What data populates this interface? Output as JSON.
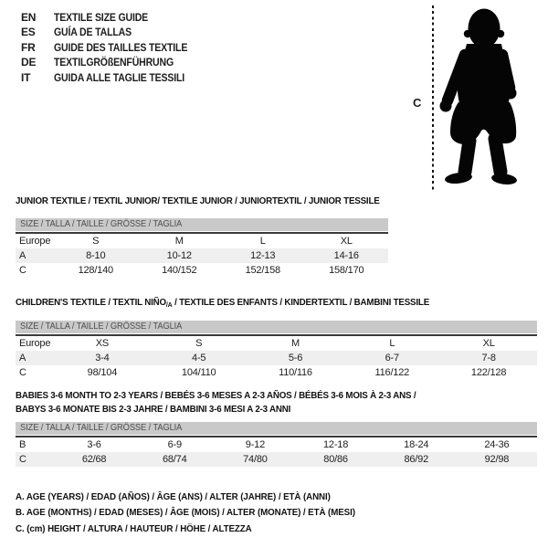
{
  "colors": {
    "header_bar": "#c9c9c9",
    "row_shade": "#efefef",
    "separator": "#3a3a3a",
    "text": "#1d1d1d",
    "bar_text": "#4f4f4f"
  },
  "languages": [
    {
      "code": "EN",
      "title": "TEXTILE SIZE GUIDE"
    },
    {
      "code": "ES",
      "title": "GUÍA DE TALLAS"
    },
    {
      "code": "FR",
      "title": "GUIDE DES TAILLES TEXTILE"
    },
    {
      "code": "DE",
      "title": "TEXTILGRÖßENFÜHRUNG"
    },
    {
      "code": "IT",
      "title": "GUIDA ALLE TAGLIE TESSILI"
    }
  ],
  "figure": {
    "label": "C"
  },
  "tables": [
    {
      "title": "JUNIOR TEXTILE / TEXTIL JUNIOR/ TEXTILE JUNIOR / JUNIORTEXTIL / JUNIOR TESSILE",
      "size_header": "SIZE / TALLA / TAILLE / GRÖSSE / TAGLIA",
      "rows": [
        {
          "label": "Europe",
          "shaded": false,
          "cells": [
            "S",
            "M",
            "L",
            "XL"
          ]
        },
        {
          "label": "A",
          "shaded": true,
          "cells": [
            "8-10",
            "10-12",
            "12-13",
            "14-16"
          ]
        },
        {
          "label": "C",
          "shaded": false,
          "cells": [
            "128/140",
            "140/152",
            "152/158",
            "158/170"
          ]
        }
      ]
    },
    {
      "title_pre": "CHILDREN'S TEXTILE / TEXTIL NIÑO",
      "title_sub": "/A",
      "title_post": " / TEXTILE DES ENFANTS / KINDERTEXTIL / BAMBINI TESSILE",
      "size_header": "SIZE / TALLA / TAILLE / GRÖSSE / TAGLIA",
      "rows": [
        {
          "label": "Europe",
          "shaded": false,
          "cells": [
            "XS",
            "S",
            "M",
            "L",
            "XL"
          ]
        },
        {
          "label": "A",
          "shaded": true,
          "cells": [
            "3-4",
            "4-5",
            "5-6",
            "6-7",
            "7-8"
          ]
        },
        {
          "label": "C",
          "shaded": false,
          "cells": [
            "98/104",
            "104/110",
            "110/116",
            "116/122",
            "122/128"
          ]
        }
      ]
    },
    {
      "title_line1": "BABIES 3-6 MONTH TO 2-3 YEARS / BEBÉS 3-6 MESES A 2-3 AÑOS / BÉBÉS 3-6 MOIS À 2-3 ANS /",
      "title_line2": "BABYS 3-6 MONATE BIS 2-3 JAHRE / BAMBINI 3-6 MESI A 2-3 ANNI",
      "size_header": "SIZE / TALLA / TAILLE / GRÖSSE / TAGLIA",
      "rows": [
        {
          "label": "B",
          "shaded": false,
          "cells": [
            "3-6",
            "6-9",
            "9-12",
            "12-18",
            "18-24",
            "24-36"
          ]
        },
        {
          "label": "C",
          "shaded": true,
          "cells": [
            "62/68",
            "68/74",
            "74/80",
            "80/86",
            "86/92",
            "92/98"
          ]
        }
      ]
    }
  ],
  "notes": [
    "A. AGE (YEARS) / EDAD (AÑOS) / ÂGE (ANS) / ALTER (JAHRE) / ETÀ (ANNI)",
    "B. AGE (MONTHS) / EDAD (MESES) / ÂGE (MOIS) / ALTER (MONATE) / ETÀ (MESI)",
    "C. (cm) HEIGHT / ALTURA / HAUTEUR / HÖHE / ALTEZZA"
  ]
}
